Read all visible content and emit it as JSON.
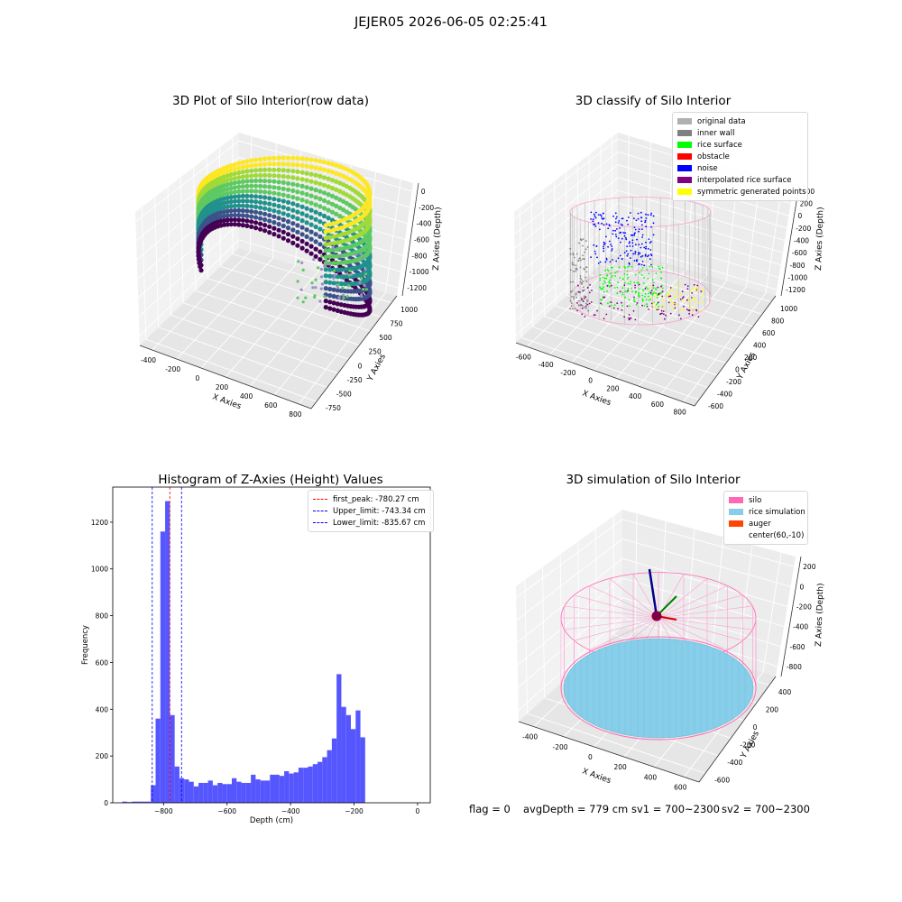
{
  "suptitle": "JEJER05 2026-06-05 02:25:41",
  "chart_data": [
    {
      "type": "scatter",
      "title": "3D Plot of Silo Interior(row data)",
      "xlabel": "X Axies",
      "ylabel": "Y Axies",
      "zlabel": "Z Axies (Depth)",
      "x_ticks": [
        "-400",
        "-200",
        "0",
        "200",
        "400",
        "600",
        "800"
      ],
      "y_ticks": [
        "-750",
        "-500",
        "-250",
        "0",
        "250",
        "500",
        "750",
        "1000"
      ],
      "z_ticks": [
        "0",
        "-200",
        "-400",
        "-600",
        "-800",
        "-1000",
        "-1200"
      ],
      "grid": true
    },
    {
      "type": "scatter",
      "title": "3D classify of Silo Interior",
      "xlabel": "X Axies",
      "ylabel": "Y Axies",
      "zlabel": "Z Axies (Depth)",
      "x_ticks": [
        "-600",
        "-400",
        "-200",
        "0",
        "200",
        "400",
        "600",
        "800"
      ],
      "y_ticks": [
        "-600",
        "-400",
        "-200",
        "0",
        "200",
        "400",
        "600",
        "800",
        "1000"
      ],
      "z_ticks": [
        "400",
        "200",
        "0",
        "-200",
        "-400",
        "-600",
        "-800",
        "-1000",
        "-1200"
      ],
      "legend": [
        {
          "label": "original data",
          "color": "#b0b0b0"
        },
        {
          "label": "inner wall",
          "color": "#808080"
        },
        {
          "label": "rice surface",
          "color": "#00ff00"
        },
        {
          "label": "obstacle",
          "color": "#ff0000"
        },
        {
          "label": "noise",
          "color": "#0000ff"
        },
        {
          "label": "interpolated rice surface",
          "color": "#800080"
        },
        {
          "label": "symmetric generated points",
          "color": "#ffff00"
        }
      ],
      "legend_position": "top-right",
      "grid": true
    },
    {
      "type": "bar",
      "title": "Histogram of Z-Axies (Height) Values",
      "xlabel": "Depth (cm)",
      "ylabel": "Frequency",
      "bar_color": "#4d4dff",
      "bin_width": 15,
      "bins": [
        {
          "x": -930,
          "count": 5
        },
        {
          "x": -915,
          "count": 3
        },
        {
          "x": -900,
          "count": 5
        },
        {
          "x": -885,
          "count": 5
        },
        {
          "x": -870,
          "count": 5
        },
        {
          "x": -855,
          "count": 5
        },
        {
          "x": -840,
          "count": 75
        },
        {
          "x": -825,
          "count": 360
        },
        {
          "x": -810,
          "count": 1160
        },
        {
          "x": -795,
          "count": 1290
        },
        {
          "x": -780,
          "count": 375
        },
        {
          "x": -765,
          "count": 155
        },
        {
          "x": -750,
          "count": 105
        },
        {
          "x": -735,
          "count": 100
        },
        {
          "x": -720,
          "count": 90
        },
        {
          "x": -705,
          "count": 70
        },
        {
          "x": -690,
          "count": 85
        },
        {
          "x": -675,
          "count": 85
        },
        {
          "x": -660,
          "count": 95
        },
        {
          "x": -645,
          "count": 75
        },
        {
          "x": -630,
          "count": 85
        },
        {
          "x": -615,
          "count": 80
        },
        {
          "x": -600,
          "count": 80
        },
        {
          "x": -585,
          "count": 105
        },
        {
          "x": -570,
          "count": 90
        },
        {
          "x": -555,
          "count": 85
        },
        {
          "x": -540,
          "count": 85
        },
        {
          "x": -525,
          "count": 120
        },
        {
          "x": -510,
          "count": 100
        },
        {
          "x": -495,
          "count": 95
        },
        {
          "x": -480,
          "count": 95
        },
        {
          "x": -465,
          "count": 120
        },
        {
          "x": -450,
          "count": 120
        },
        {
          "x": -435,
          "count": 115
        },
        {
          "x": -420,
          "count": 135
        },
        {
          "x": -405,
          "count": 125
        },
        {
          "x": -390,
          "count": 130
        },
        {
          "x": -375,
          "count": 150
        },
        {
          "x": -360,
          "count": 150
        },
        {
          "x": -345,
          "count": 155
        },
        {
          "x": -330,
          "count": 165
        },
        {
          "x": -315,
          "count": 175
        },
        {
          "x": -300,
          "count": 195
        },
        {
          "x": -285,
          "count": 225
        },
        {
          "x": -270,
          "count": 275
        },
        {
          "x": -255,
          "count": 550
        },
        {
          "x": -240,
          "count": 410
        },
        {
          "x": -225,
          "count": 375
        },
        {
          "x": -210,
          "count": 315
        },
        {
          "x": -195,
          "count": 395
        },
        {
          "x": -180,
          "count": 280
        }
      ],
      "xlim": [
        -960,
        40
      ],
      "ylim": [
        0,
        1350
      ],
      "x_ticks": [
        -800,
        -600,
        -400,
        -200,
        0
      ],
      "y_ticks": [
        0,
        200,
        400,
        600,
        800,
        1000,
        1200
      ],
      "vlines": [
        {
          "label": "first_peak: -780.27 cm",
          "value": -780.27,
          "color": "#ff0000"
        },
        {
          "label": "Upper_limit: -743.34 cm",
          "value": -743.34,
          "color": "#0000ff"
        },
        {
          "label": "Lower_limit: -835.67 cm",
          "value": -835.67,
          "color": "#0000ff"
        }
      ],
      "legend_position": "top-right"
    },
    {
      "type": "scatter",
      "title": "3D simulation of Silo Interior",
      "xlabel": "X Axies",
      "ylabel": "Y Axies",
      "zlabel": "Z Axies (Depth)",
      "x_ticks": [
        "-400",
        "-200",
        "0",
        "200",
        "400",
        "600"
      ],
      "y_ticks": [
        "-600",
        "-400",
        "-200",
        "0",
        "200",
        "400"
      ],
      "z_ticks": [
        "200",
        "0",
        "-200",
        "-400",
        "-600",
        "-800"
      ],
      "legend": [
        {
          "label": "silo",
          "color": "#ff69b4"
        },
        {
          "label": "rice simulation",
          "color": "#87ceeb"
        },
        {
          "label": "auger",
          "color": "#ff4500"
        },
        {
          "label": "center(60,-10)",
          "color": ""
        }
      ],
      "legend_position": "top-right",
      "grid": true
    }
  ],
  "status": {
    "flag": "flag = 0",
    "avg_depth": "avgDepth = 779 cm",
    "sv1": "sv1 = 700~2300",
    "sv2": "sv2 = 700~2300"
  }
}
